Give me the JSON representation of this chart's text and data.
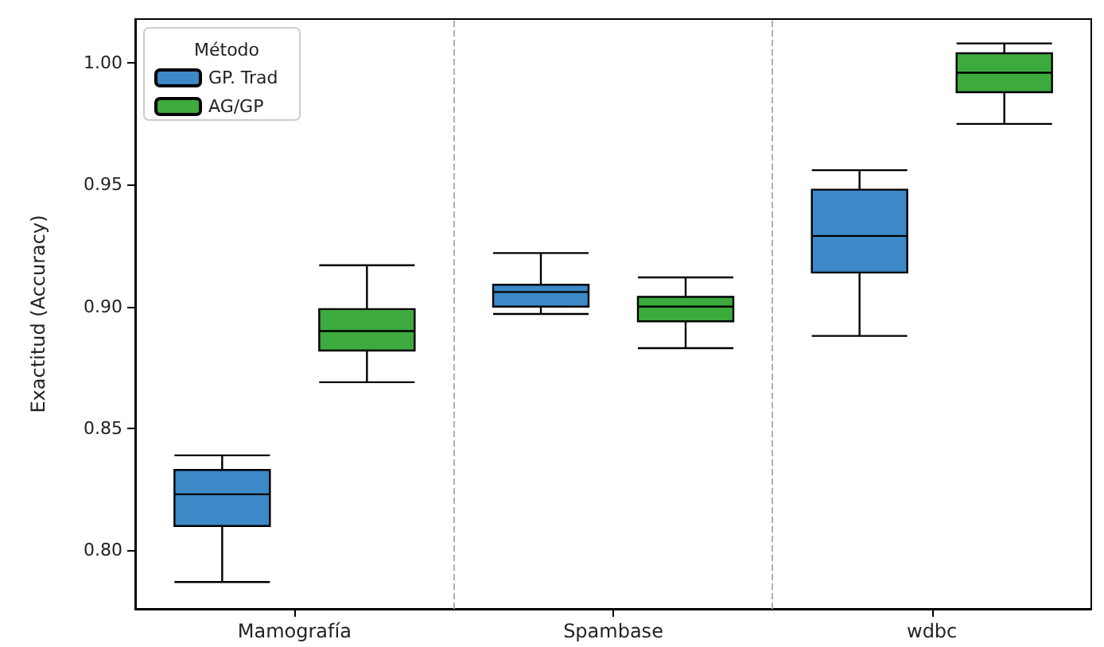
{
  "chart_data": {
    "type": "box",
    "ylabel": "Exactitud (Accuracy)",
    "legend_title": "Método",
    "legend": "top left",
    "grid": false,
    "categories": [
      "Mamografía",
      "Spambase",
      "wdbc"
    ],
    "ylim": [
      0.776,
      1.018
    ],
    "yticks": [
      {
        "value": 0.8,
        "label": "0.80"
      },
      {
        "value": 0.85,
        "label": "0.85"
      },
      {
        "value": 0.9,
        "label": "0.90"
      },
      {
        "value": 0.95,
        "label": "0.95"
      },
      {
        "value": 1.0,
        "label": "1.00"
      }
    ],
    "series": [
      {
        "name": "GP. Trad",
        "color": "#3d88c6",
        "boxes": [
          {
            "low": 0.787,
            "q1": 0.81,
            "median": 0.823,
            "q3": 0.833,
            "high": 0.839
          },
          {
            "low": 0.897,
            "q1": 0.9,
            "median": 0.906,
            "q3": 0.909,
            "high": 0.922
          },
          {
            "low": 0.888,
            "q1": 0.914,
            "median": 0.929,
            "q3": 0.948,
            "high": 0.956
          }
        ]
      },
      {
        "name": "AG/GP",
        "color": "#3caa3c",
        "boxes": [
          {
            "low": 0.869,
            "q1": 0.882,
            "median": 0.89,
            "q3": 0.899,
            "high": 0.917
          },
          {
            "low": 0.883,
            "q1": 0.894,
            "median": 0.9,
            "q3": 0.904,
            "high": 0.912
          },
          {
            "low": 0.975,
            "q1": 0.988,
            "median": 0.996,
            "q3": 1.004,
            "high": 1.008
          }
        ]
      }
    ]
  }
}
